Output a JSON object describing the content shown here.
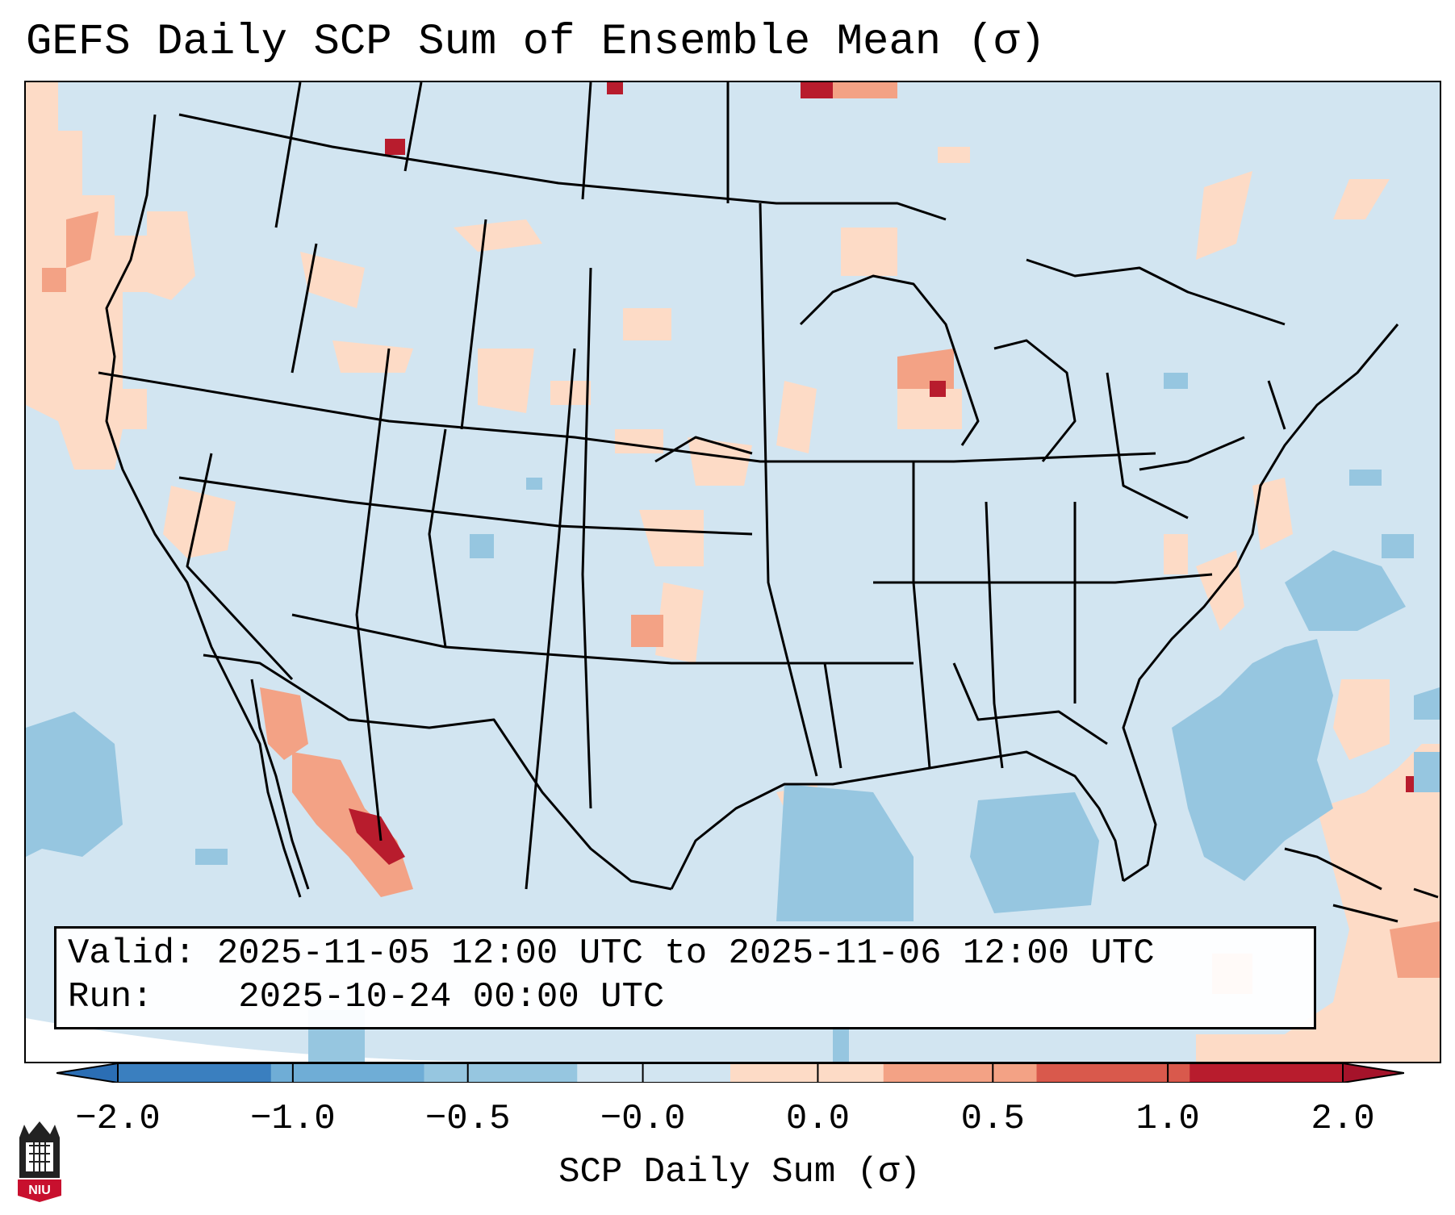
{
  "title": "GEFS Daily SCP Sum of Ensemble Mean (σ)",
  "info": {
    "valid_label": "Valid:",
    "valid_value": "2025-11-05 12:00 UTC to 2025-11-06 12:00 UTC",
    "run_label": "Run:",
    "run_value": "2025-10-24 00:00 UTC"
  },
  "colorbar": {
    "label": "SCP Daily Sum (σ)",
    "ticks": [
      "−2.0",
      "−1.0",
      "−0.5",
      "−0.0",
      "0.0",
      "0.5",
      "1.0",
      "2.0"
    ],
    "colors": [
      "#3a7fbf",
      "#6fadd6",
      "#96c6e0",
      "#d2e5f1",
      "#fddbc6",
      "#f3a285",
      "#d9594c",
      "#b81c2d"
    ],
    "extend_low_color": "#2b6eb4",
    "extend_high_color": "#a5132a"
  },
  "logo": {
    "text": "NIU",
    "icon": "niu-logo-icon"
  },
  "map": {
    "background_color": "#d2e5f1",
    "border_color": "#000000",
    "layers": [
      "state-borders",
      "country-borders",
      "coastlines",
      "scp-anomaly-grid"
    ]
  }
}
